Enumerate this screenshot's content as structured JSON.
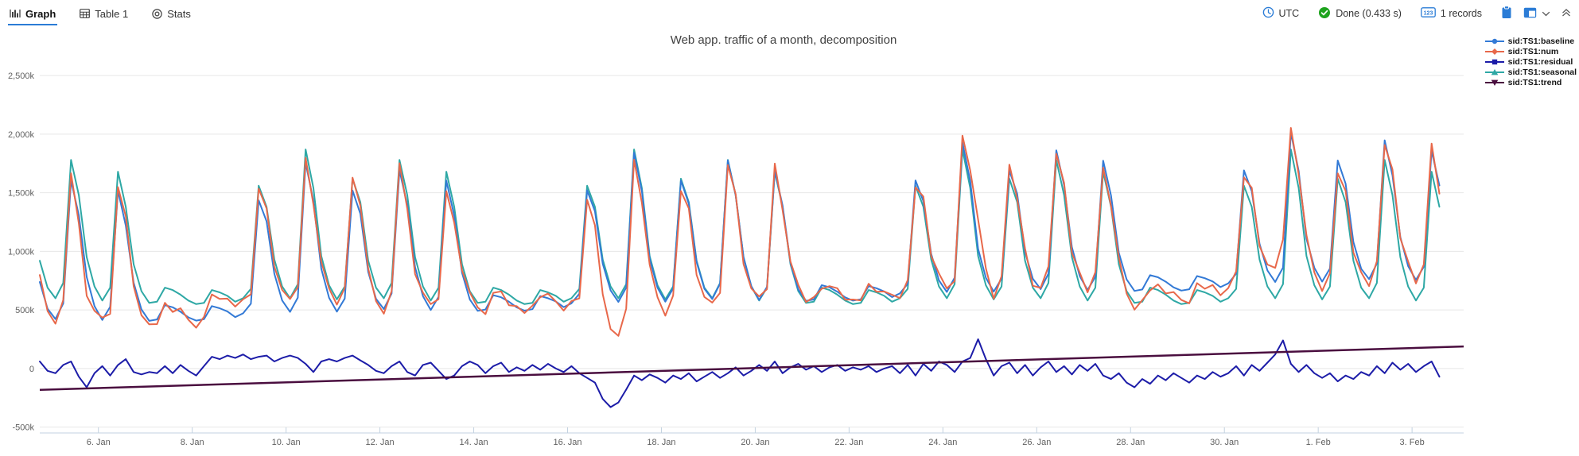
{
  "toolbar": {
    "tabs": [
      {
        "label": "Graph",
        "active": true
      },
      {
        "label": "Table 1",
        "active": false
      },
      {
        "label": "Stats",
        "active": false
      }
    ],
    "status": {
      "timezone": "UTC",
      "done": "Done (0.433 s)",
      "records_badge": "123",
      "records": "1 records"
    },
    "colors": {
      "accent_blue": "#2B7CD6",
      "done_green": "#1EA31E"
    }
  },
  "chart_data": {
    "type": "line",
    "title": "Web app. traffic of a month, decomposition",
    "x_axis": {
      "domain_days": [
        4.75,
        35.1
      ],
      "tick_days": [
        6,
        8,
        10,
        12,
        14,
        16,
        18,
        20,
        22,
        24,
        26,
        28,
        30,
        32,
        34
      ],
      "tick_labels": [
        "6. Jan",
        "8. Jan",
        "10. Jan",
        "12. Jan",
        "14. Jan",
        "16. Jan",
        "18. Jan",
        "20. Jan",
        "22. Jan",
        "24. Jan",
        "26. Jan",
        "28. Jan",
        "30. Jan",
        "1. Feb",
        "3. Feb"
      ]
    },
    "y_axis": {
      "units": "thousands",
      "range": [
        -550,
        2650
      ],
      "tick_values": [
        -500,
        0,
        500,
        1000,
        1500,
        2000,
        2500
      ],
      "tick_labels": [
        "-500k",
        "0",
        "500k",
        "1,000k",
        "1,500k",
        "2,000k",
        "2,500k"
      ],
      "grid": true
    },
    "legend_position": "right",
    "series": [
      {
        "name": "sid:TS1:baseline",
        "color": "#337AD6",
        "marker": "circle",
        "derived_as": "seasonal + trend"
      },
      {
        "name": "sid:TS1:num",
        "color": "#E8684A",
        "marker": "diamond",
        "derived_as": "baseline + residual"
      },
      {
        "name": "sid:TS1:residual",
        "color": "#1C1CA8",
        "marker": "square",
        "values_key": "residual"
      },
      {
        "name": "sid:TS1:seasonal",
        "color": "#2EA8A5",
        "marker": "triangle-up",
        "values_key": "seasonal"
      },
      {
        "name": "sid:TS1:trend",
        "color": "#4A0E3F",
        "marker": "triangle-down",
        "line": {
          "x": [
            4.75,
            35.1
          ],
          "values": [
            -182,
            188
          ]
        }
      }
    ],
    "points": {
      "start_day": 4.75,
      "step_days": 0.1666667,
      "seasonal": [
        920,
        690,
        600,
        730,
        1780,
        1480,
        950,
        700,
        580,
        690,
        1680,
        1380,
        890,
        660,
        560,
        570,
        690,
        670,
        630,
        580,
        550,
        560,
        670,
        650,
        620,
        570,
        600,
        680,
        1560,
        1380,
        930,
        700,
        600,
        720,
        1870,
        1540,
        960,
        710,
        590,
        700,
        1620,
        1420,
        920,
        690,
        600,
        730,
        1780,
        1480,
        950,
        700,
        580,
        690,
        1680,
        1380,
        890,
        660,
        560,
        570,
        690,
        670,
        630,
        580,
        550,
        560,
        670,
        650,
        620,
        570,
        600,
        680,
        1560,
        1380,
        930,
        700,
        600,
        720,
        1870,
        1540,
        960,
        710,
        590,
        700,
        1620,
        1420,
        920,
        690,
        600,
        730,
        1780,
        1480,
        950,
        700,
        580,
        690,
        1680,
        1380,
        890,
        660,
        560,
        570,
        690,
        670,
        630,
        580,
        550,
        560,
        670,
        650,
        620,
        570,
        600,
        680,
        1560,
        1380,
        930,
        700,
        600,
        720,
        1870,
        1540,
        960,
        710,
        590,
        700,
        1620,
        1420,
        920,
        690,
        600,
        730,
        1780,
        1480,
        950,
        700,
        580,
        690,
        1680,
        1380,
        890,
        660,
        560,
        570,
        690,
        670,
        630,
        580,
        550,
        560,
        670,
        650,
        620,
        570,
        600,
        680,
        1560,
        1380,
        930,
        700,
        600,
        720,
        1870,
        1540,
        960,
        710,
        590,
        700,
        1620,
        1420,
        920,
        690,
        600,
        730,
        1780,
        1480,
        950,
        700,
        580,
        690,
        1680,
        1380
      ],
      "residual": [
        60,
        -20,
        -40,
        30,
        60,
        -70,
        -160,
        -40,
        20,
        -60,
        30,
        80,
        -30,
        -50,
        -30,
        -40,
        20,
        -40,
        30,
        -20,
        -60,
        20,
        100,
        80,
        110,
        90,
        120,
        80,
        100,
        110,
        60,
        90,
        110,
        90,
        40,
        -30,
        60,
        80,
        60,
        90,
        110,
        70,
        30,
        -20,
        -40,
        20,
        60,
        -30,
        -60,
        30,
        50,
        -20,
        -90,
        -60,
        20,
        60,
        30,
        -40,
        20,
        50,
        -30,
        10,
        -20,
        30,
        -10,
        40,
        0,
        -30,
        20,
        -40,
        -80,
        -120,
        -260,
        -330,
        -290,
        -180,
        -60,
        -100,
        -50,
        -80,
        -120,
        -60,
        -90,
        -40,
        -110,
        -70,
        -30,
        -80,
        -40,
        10,
        -60,
        -20,
        30,
        -20,
        60,
        -40,
        10,
        40,
        -10,
        20,
        -30,
        10,
        30,
        -20,
        10,
        -10,
        20,
        -30,
        0,
        20,
        -40,
        30,
        -60,
        40,
        -20,
        60,
        30,
        -30,
        60,
        90,
        250,
        80,
        -60,
        20,
        50,
        -40,
        30,
        -60,
        10,
        60,
        -30,
        20,
        -50,
        30,
        -20,
        40,
        -60,
        -90,
        -40,
        -120,
        -160,
        -90,
        -130,
        -60,
        -100,
        -40,
        -80,
        -120,
        -60,
        -90,
        -30,
        -70,
        -40,
        20,
        -60,
        30,
        -20,
        50,
        120,
        240,
        40,
        -30,
        30,
        -40,
        -80,
        -40,
        -110,
        -60,
        -90,
        -30,
        -60,
        20,
        -40,
        50,
        -10,
        40,
        -30,
        20,
        60,
        -70
      ]
    }
  }
}
